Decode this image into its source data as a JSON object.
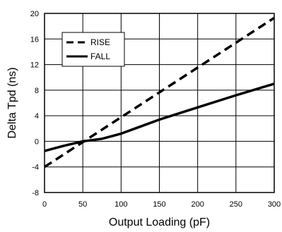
{
  "chart_data": {
    "type": "line",
    "xlabel": "Output Loading (pF)",
    "ylabel": "Delta Tpd (ns)",
    "xlim": [
      0,
      300
    ],
    "ylim": [
      -8,
      20
    ],
    "x_ticks": [
      "0",
      "50",
      "100",
      "150",
      "200",
      "250",
      "300"
    ],
    "y_ticks": [
      "-8",
      "-4",
      "0",
      "4",
      "8",
      "12",
      "16",
      "20"
    ],
    "grid": true,
    "legend_position": "top-left",
    "series": [
      {
        "name": "RISE",
        "style": "dashed",
        "x": [
          0,
          300
        ],
        "y": [
          -4,
          19.3
        ]
      },
      {
        "name": "FALL",
        "style": "solid",
        "x": [
          0,
          25,
          50,
          75,
          100,
          125,
          150,
          200,
          250,
          300
        ],
        "y": [
          -1.5,
          -0.7,
          0,
          0.4,
          1.2,
          2.3,
          3.4,
          5.3,
          7.2,
          9.0
        ]
      }
    ]
  }
}
